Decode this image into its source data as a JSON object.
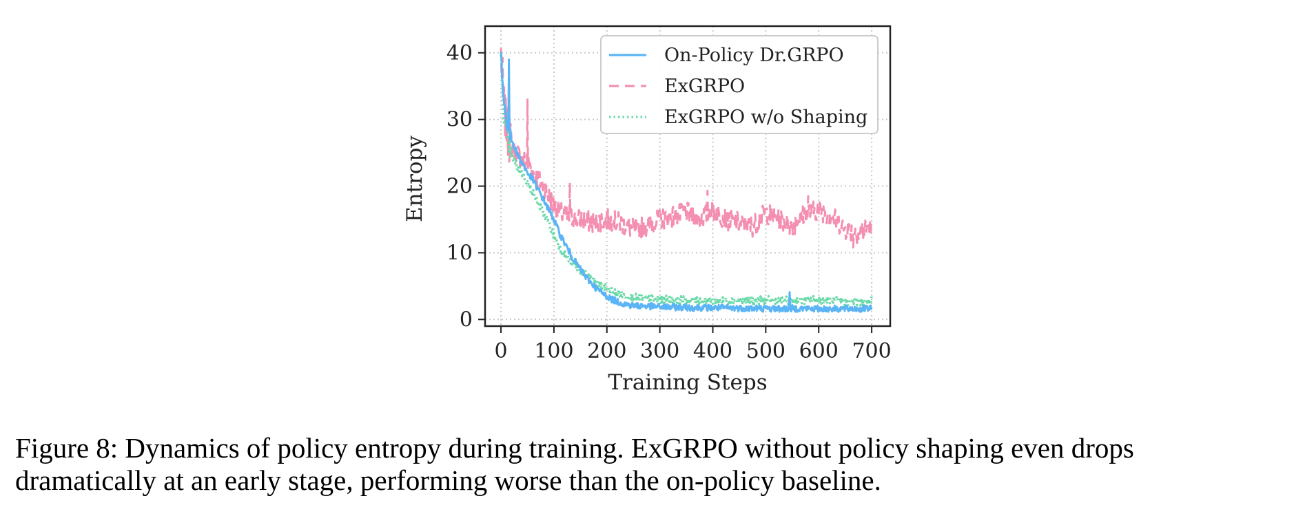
{
  "chart_data": {
    "type": "line",
    "xlabel": "Training Steps",
    "ylabel": "Entropy",
    "xlim": [
      -30,
      735
    ],
    "ylim": [
      -1,
      44
    ],
    "xticks": [
      0,
      100,
      200,
      300,
      400,
      500,
      600,
      700
    ],
    "yticks": [
      0,
      10,
      20,
      30,
      40
    ],
    "grid": true,
    "legend_position": "top-right",
    "series": [
      {
        "name": "On-Policy Dr.GRPO",
        "color": "#5ab4f5",
        "style": "solid",
        "x": [
          0,
          5,
          10,
          15,
          20,
          30,
          40,
          50,
          60,
          70,
          80,
          90,
          100,
          110,
          120,
          130,
          140,
          150,
          160,
          170,
          180,
          190,
          200,
          210,
          220,
          230,
          240,
          250,
          275,
          300,
          350,
          400,
          450,
          500,
          540,
          550,
          600,
          650,
          700
        ],
        "y": [
          40,
          33,
          30,
          28,
          27,
          25,
          23.5,
          22,
          21,
          19.5,
          18,
          16.5,
          15,
          13,
          11.5,
          10,
          8.7,
          7.5,
          6.4,
          5.5,
          4.7,
          4.0,
          3.5,
          3.0,
          2.7,
          2.4,
          2.2,
          2.1,
          2.0,
          1.9,
          1.8,
          1.75,
          1.7,
          1.65,
          1.6,
          1.65,
          1.6,
          1.6,
          1.6
        ],
        "noise": 0.5
      },
      {
        "name": "ExGRPO",
        "color": "#f48fb1",
        "style": "dashed",
        "x": [
          0,
          5,
          10,
          15,
          20,
          30,
          40,
          50,
          60,
          70,
          80,
          90,
          100,
          120,
          150,
          175,
          200,
          225,
          250,
          275,
          300,
          325,
          350,
          375,
          400,
          425,
          450,
          475,
          500,
          525,
          550,
          575,
          600,
          625,
          650,
          675,
          700
        ],
        "y": [
          40,
          33,
          29,
          27,
          26,
          25,
          24,
          23.5,
          22,
          21,
          20,
          18.5,
          17,
          15.5,
          15,
          14.5,
          15,
          14.5,
          13.5,
          14,
          15,
          15.5,
          16,
          15,
          16.5,
          15,
          14.5,
          14,
          16,
          15,
          14,
          16,
          16.5,
          15.5,
          13.5,
          13,
          14
        ],
        "noise": 1.6
      },
      {
        "name": "ExGRPO w/o Shaping",
        "color": "#6ad9a8",
        "style": "dotted",
        "x": [
          0,
          5,
          10,
          15,
          20,
          30,
          40,
          50,
          60,
          70,
          80,
          90,
          100,
          110,
          120,
          130,
          140,
          150,
          160,
          170,
          180,
          190,
          200,
          210,
          220,
          230,
          250,
          275,
          300,
          350,
          400,
          450,
          500,
          550,
          600,
          650,
          700
        ],
        "y": [
          40,
          31,
          28,
          26,
          24.5,
          23,
          22,
          20.5,
          19,
          17.5,
          16,
          14.5,
          12.5,
          11,
          9.8,
          8.7,
          8,
          7.4,
          6.8,
          6.2,
          5.5,
          5.0,
          4.6,
          4.2,
          3.9,
          3.6,
          3.3,
          3.1,
          3.0,
          2.9,
          2.8,
          2.8,
          2.9,
          2.8,
          3.0,
          2.7,
          2.5
        ],
        "noise": 0.6
      }
    ],
    "spikes": [
      {
        "series": 0,
        "x": 15,
        "y": 39
      },
      {
        "series": 1,
        "x": 50,
        "y": 33
      },
      {
        "series": 1,
        "x": 130,
        "y": 20.5
      },
      {
        "series": 1,
        "x": 390,
        "y": 19.3
      },
      {
        "series": 1,
        "x": 580,
        "y": 18.5
      },
      {
        "series": 1,
        "x": 665,
        "y": 10.8
      },
      {
        "series": 0,
        "x": 545,
        "y": 4.1
      },
      {
        "series": 2,
        "x": 700,
        "y": 3.6
      }
    ]
  },
  "caption": {
    "line1": "Figure 8: Dynamics of policy entropy during training. ExGRPO without policy shaping even drops",
    "line2": "dramatically at an early stage, performing worse than the on-policy baseline."
  }
}
